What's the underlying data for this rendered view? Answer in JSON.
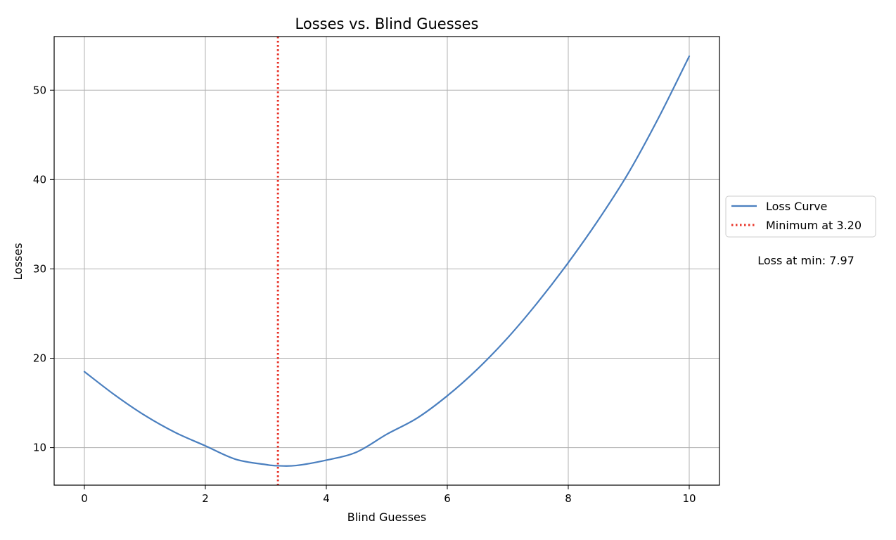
{
  "chart_data": {
    "type": "line",
    "title": "Losses vs. Blind Guesses",
    "xlabel": "Blind Guesses",
    "ylabel": "Losses",
    "xlim": [
      -0.5,
      10.5
    ],
    "ylim": [
      5.8,
      56.0
    ],
    "xticks": [
      0,
      2,
      4,
      6,
      8,
      10
    ],
    "yticks": [
      10,
      20,
      30,
      40,
      50
    ],
    "grid": true,
    "legend_position": "outside-right",
    "series": [
      {
        "name": "Loss Curve",
        "color": "#4a7fbf",
        "x": [
          0,
          0.5,
          1,
          1.5,
          2,
          2.5,
          3,
          3.2,
          3.5,
          4,
          4.5,
          5,
          5.5,
          6,
          6.5,
          7,
          7.5,
          8,
          8.5,
          9,
          9.5,
          10
        ],
        "y": [
          18.5,
          15.9,
          13.6,
          11.7,
          10.2,
          8.7,
          8.1,
          7.97,
          8.0,
          8.6,
          9.5,
          11.5,
          13.3,
          15.8,
          18.8,
          22.3,
          26.3,
          30.7,
          35.5,
          40.8,
          47.0,
          53.8
        ]
      }
    ],
    "vline": {
      "x": 3.2,
      "label": "Minimum at 3.20",
      "color": "#e8342a",
      "style": "dotted"
    },
    "annotation": "Loss at min: 7.97"
  }
}
